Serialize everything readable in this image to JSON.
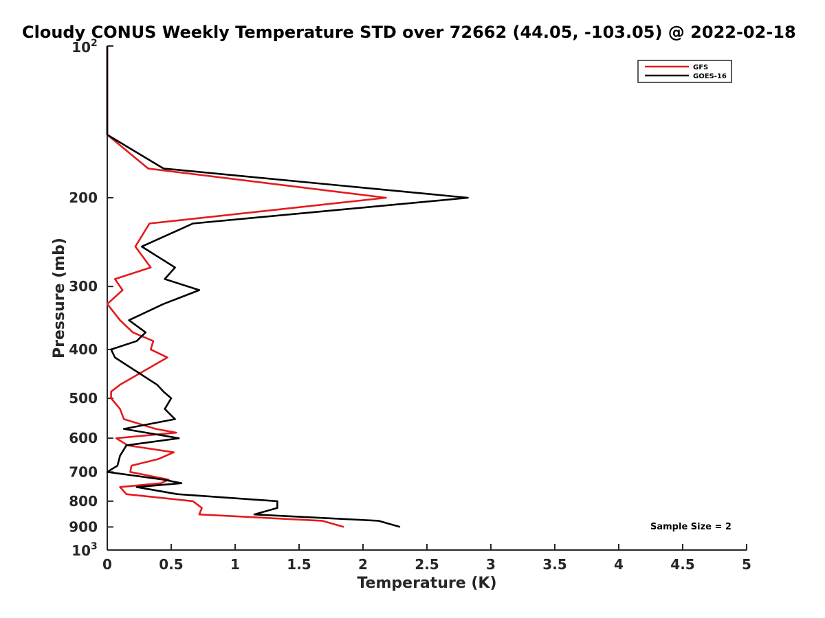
{
  "chart_data": {
    "type": "line",
    "title": "Cloudy CONUS Weekly Temperature STD over 72662 (44.05, -103.05) @ 2022-02-18",
    "xlabel": "Temperature (K)",
    "ylabel": "Pressure (mb)",
    "xlim": [
      0,
      5
    ],
    "ylim": [
      100,
      1000
    ],
    "y_scale": "log",
    "y_reversed": true,
    "x_ticks": [
      "0",
      "0.5",
      "1",
      "1.5",
      "2",
      "2.5",
      "3",
      "3.5",
      "4",
      "4.5",
      "5"
    ],
    "y_ticks": [
      {
        "value": 100,
        "base": "10",
        "exp": "2"
      },
      {
        "value": 200,
        "label": "200"
      },
      {
        "value": 300,
        "label": "300"
      },
      {
        "value": 400,
        "label": "400"
      },
      {
        "value": 500,
        "label": "500"
      },
      {
        "value": 600,
        "label": "600"
      },
      {
        "value": 700,
        "label": "700"
      },
      {
        "value": 800,
        "label": "800"
      },
      {
        "value": 900,
        "label": "900"
      },
      {
        "value": 1000,
        "base": "10",
        "exp": "3"
      }
    ],
    "grid": false,
    "legend_position": "top-right",
    "annotation": "Sample Size = 2",
    "series": [
      {
        "name": "GFS",
        "color": "#e41a1c",
        "points": [
          {
            "x": 0.0,
            "p": 100
          },
          {
            "x": 0.0,
            "p": 150
          },
          {
            "x": 0.32,
            "p": 175
          },
          {
            "x": 2.18,
            "p": 200
          },
          {
            "x": 0.33,
            "p": 225
          },
          {
            "x": 0.22,
            "p": 250
          },
          {
            "x": 0.34,
            "p": 275
          },
          {
            "x": 0.06,
            "p": 290
          },
          {
            "x": 0.12,
            "p": 305
          },
          {
            "x": 0.0,
            "p": 325
          },
          {
            "x": 0.1,
            "p": 350
          },
          {
            "x": 0.2,
            "p": 370
          },
          {
            "x": 0.36,
            "p": 385
          },
          {
            "x": 0.34,
            "p": 400
          },
          {
            "x": 0.47,
            "p": 415
          },
          {
            "x": 0.1,
            "p": 470
          },
          {
            "x": 0.03,
            "p": 485
          },
          {
            "x": 0.03,
            "p": 500
          },
          {
            "x": 0.1,
            "p": 525
          },
          {
            "x": 0.13,
            "p": 550
          },
          {
            "x": 0.38,
            "p": 575
          },
          {
            "x": 0.54,
            "p": 585
          },
          {
            "x": 0.07,
            "p": 600
          },
          {
            "x": 0.16,
            "p": 620
          },
          {
            "x": 0.52,
            "p": 640
          },
          {
            "x": 0.4,
            "p": 660
          },
          {
            "x": 0.19,
            "p": 680
          },
          {
            "x": 0.18,
            "p": 700
          },
          {
            "x": 0.48,
            "p": 725
          },
          {
            "x": 0.42,
            "p": 737
          },
          {
            "x": 0.1,
            "p": 750
          },
          {
            "x": 0.15,
            "p": 775
          },
          {
            "x": 0.67,
            "p": 800
          },
          {
            "x": 0.74,
            "p": 825
          },
          {
            "x": 0.72,
            "p": 850
          },
          {
            "x": 1.68,
            "p": 875
          },
          {
            "x": 1.85,
            "p": 900
          }
        ]
      },
      {
        "name": "GOES-16",
        "color": "#000000",
        "points": [
          {
            "x": 0.0,
            "p": 100
          },
          {
            "x": 0.0,
            "p": 150
          },
          {
            "x": 0.44,
            "p": 175
          },
          {
            "x": 2.82,
            "p": 200
          },
          {
            "x": 0.67,
            "p": 225
          },
          {
            "x": 0.27,
            "p": 250
          },
          {
            "x": 0.53,
            "p": 275
          },
          {
            "x": 0.45,
            "p": 290
          },
          {
            "x": 0.72,
            "p": 305
          },
          {
            "x": 0.44,
            "p": 325
          },
          {
            "x": 0.17,
            "p": 350
          },
          {
            "x": 0.3,
            "p": 370
          },
          {
            "x": 0.23,
            "p": 385
          },
          {
            "x": 0.03,
            "p": 400
          },
          {
            "x": 0.06,
            "p": 415
          },
          {
            "x": 0.39,
            "p": 470
          },
          {
            "x": 0.44,
            "p": 485
          },
          {
            "x": 0.5,
            "p": 500
          },
          {
            "x": 0.45,
            "p": 525
          },
          {
            "x": 0.53,
            "p": 550
          },
          {
            "x": 0.13,
            "p": 575
          },
          {
            "x": 0.56,
            "p": 600
          },
          {
            "x": 0.15,
            "p": 620
          },
          {
            "x": 0.1,
            "p": 650
          },
          {
            "x": 0.08,
            "p": 680
          },
          {
            "x": 0.0,
            "p": 700
          },
          {
            "x": 0.44,
            "p": 725
          },
          {
            "x": 0.58,
            "p": 737
          },
          {
            "x": 0.23,
            "p": 750
          },
          {
            "x": 0.55,
            "p": 775
          },
          {
            "x": 1.33,
            "p": 800
          },
          {
            "x": 1.33,
            "p": 825
          },
          {
            "x": 1.15,
            "p": 850
          },
          {
            "x": 2.12,
            "p": 875
          },
          {
            "x": 2.29,
            "p": 900
          }
        ]
      }
    ]
  }
}
